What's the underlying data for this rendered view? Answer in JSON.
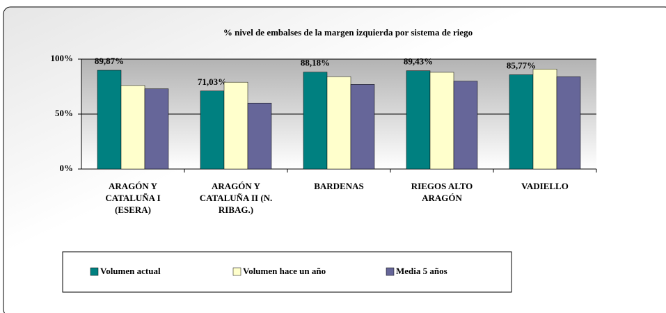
{
  "chart_data": {
    "type": "bar",
    "title": "% nivel de embalses de la margen izquierda por sistema de riego",
    "categories": [
      "ARAGÓN Y CATALUÑA I (ESERA)",
      "ARAGÓN Y CATALUÑA II (N. RIBAG.)",
      "BARDENAS",
      "RIEGOS ALTO ARAGÓN",
      "VADIELLO"
    ],
    "series": [
      {
        "name": "Volumen actual",
        "color": "#008080",
        "values": [
          89.87,
          71.03,
          88.18,
          89.43,
          85.77
        ],
        "value_labels": [
          "89,87%",
          "71,03%",
          "88,18%",
          "89,43%",
          "85,77%"
        ]
      },
      {
        "name": "Volumen hace un año",
        "color": "#ffffcc",
        "values": [
          76,
          79,
          84,
          88,
          91
        ]
      },
      {
        "name": "Media 5 años",
        "color": "#666699",
        "values": [
          73,
          60,
          77,
          80,
          84
        ]
      }
    ],
    "ylim": [
      0,
      100
    ],
    "yticks": [
      {
        "value": 0,
        "label": "0%"
      },
      {
        "value": 50,
        "label": "50%"
      },
      {
        "value": 100,
        "label": "100%"
      }
    ],
    "grid": true
  }
}
